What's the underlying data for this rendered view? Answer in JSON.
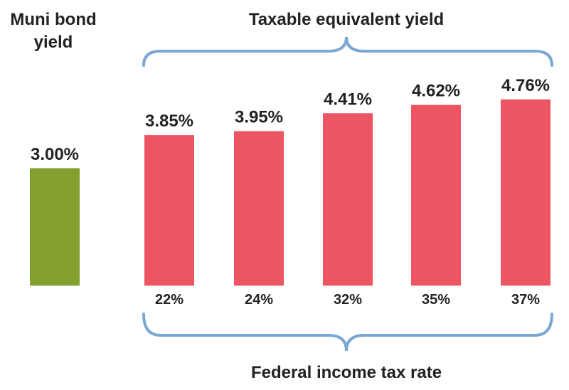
{
  "chart_data": {
    "type": "bar",
    "muni": {
      "title_line1": "Muni bond",
      "title_line2": "yield",
      "value": 3.0,
      "value_label": "3.00%",
      "color": "#83a02f"
    },
    "taxable": {
      "title": "Taxable equivalent yield",
      "xlabel": "Federal income tax rate",
      "categories": [
        "22%",
        "24%",
        "32%",
        "35%",
        "37%"
      ],
      "values": [
        3.85,
        3.95,
        4.41,
        4.62,
        4.76
      ],
      "value_labels": [
        "3.85%",
        "3.95%",
        "4.41%",
        "4.62%",
        "4.76%"
      ],
      "color": "#ee5563"
    },
    "brace_color": "#7ba8d2",
    "ylim": [
      0,
      4.76
    ]
  }
}
